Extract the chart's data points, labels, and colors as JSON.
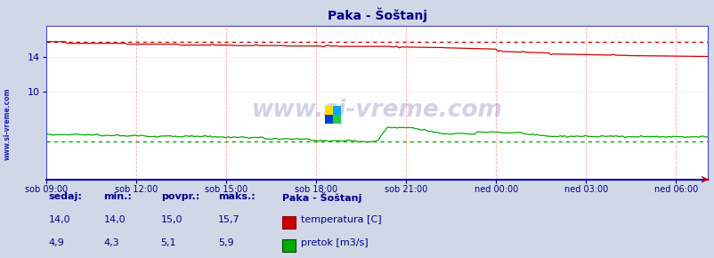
{
  "title": "Paka - Šoštanj",
  "bg_color": "#d0d8e8",
  "plot_bg_color": "#ffffff",
  "grid_color_v": "#ffaaaa",
  "grid_color_h": "#ffcccc",
  "x_labels": [
    "sob 09:00",
    "sob 12:00",
    "sob 15:00",
    "sob 18:00",
    "sob 21:00",
    "ned 00:00",
    "ned 03:00",
    "ned 06:00"
  ],
  "x_ticks_norm": [
    0.0,
    0.136,
    0.272,
    0.408,
    0.544,
    0.68,
    0.816,
    0.952
  ],
  "ylim": [
    0.0,
    17.5
  ],
  "yticks": [
    10,
    14
  ],
  "temp_avg_dotted": 15.7,
  "flow_avg_dotted": 4.3,
  "temp_color": "#cc0000",
  "flow_color": "#00aa00",
  "watermark": "www.si-vreme.com",
  "watermark_color": "#000088",
  "watermark_alpha": 0.18,
  "sidebar_text": "www.si-vreme.com",
  "sidebar_color": "#0000aa",
  "legend_title": "Paka - Šoštanj",
  "legend_items": [
    "temperatura [C]",
    "pretok [m3/s]"
  ],
  "legend_colors": [
    "#cc0000",
    "#00aa00"
  ],
  "stats_headers": [
    "sedaj:",
    "min.:",
    "povpr.:",
    "maks.:"
  ],
  "stats_temp": [
    "14,0",
    "14,0",
    "15,0",
    "15,7"
  ],
  "stats_flow": [
    "4,9",
    "4,3",
    "5,1",
    "5,9"
  ],
  "stats_color": "#000088",
  "n_points": 288
}
